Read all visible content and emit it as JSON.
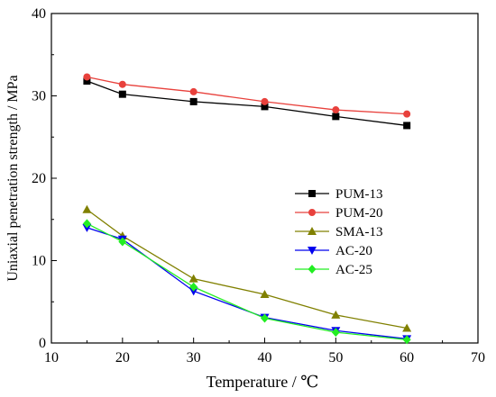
{
  "chart_data": {
    "type": "line",
    "title": "",
    "xlabel": "Temperature / ℃",
    "ylabel": "Uniaxial penetration strength / MPa",
    "xlim": [
      10,
      70
    ],
    "ylim": [
      0,
      40
    ],
    "xticks": [
      10,
      20,
      30,
      40,
      50,
      60,
      70
    ],
    "yticks": [
      0,
      10,
      20,
      30,
      40
    ],
    "grid": false,
    "legend_position": "center-right",
    "x": [
      15,
      20,
      30,
      40,
      50,
      60
    ],
    "series": [
      {
        "name": "PUM-13",
        "color": "#000000",
        "marker": "square",
        "values": [
          31.8,
          30.2,
          29.3,
          28.7,
          27.5,
          26.4
        ]
      },
      {
        "name": "PUM-20",
        "color": "#e8413c",
        "marker": "circle",
        "values": [
          32.3,
          31.4,
          30.5,
          29.3,
          28.3,
          27.8
        ]
      },
      {
        "name": "SMA-13",
        "color": "#808000",
        "marker": "triangle-up",
        "values": [
          16.2,
          13.0,
          7.8,
          5.9,
          3.4,
          1.8
        ]
      },
      {
        "name": "AC-20",
        "color": "#0000ee",
        "marker": "triangle-down",
        "values": [
          14.0,
          12.6,
          6.3,
          3.1,
          1.5,
          0.5
        ]
      },
      {
        "name": "AC-25",
        "color": "#22ee22",
        "marker": "diamond",
        "values": [
          14.5,
          12.3,
          6.8,
          3.0,
          1.3,
          0.4
        ]
      }
    ]
  }
}
